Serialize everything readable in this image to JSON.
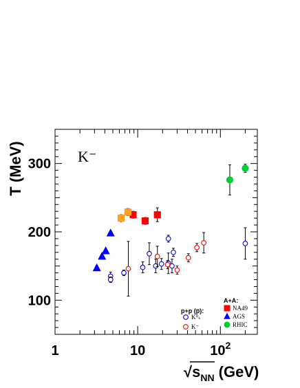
{
  "chart_data": {
    "type": "scatter",
    "title": "",
    "annotation": "K⁻",
    "xlabel": "√s_NN (GeV)",
    "ylabel": "T (MeV)",
    "xscale": "log",
    "xlim": [
      1,
      280
    ],
    "ylim": [
      50,
      350
    ],
    "xticks": [
      {
        "value": 1,
        "label": "1"
      },
      {
        "value": 10,
        "label": "10"
      },
      {
        "value": 100,
        "label": "10",
        "sup": "2"
      }
    ],
    "yticks": [
      {
        "value": 100,
        "label": "100"
      },
      {
        "value": 200,
        "label": "200"
      },
      {
        "value": 300,
        "label": "300"
      }
    ],
    "legend": {
      "placement": "bottom-right",
      "groups": [
        {
          "title": "p+p (p̅):",
          "entries": [
            {
              "label": "K⁰ₛ",
              "series": "pp_K0s"
            },
            {
              "label": "K⁻",
              "series": "pp_Kminus"
            }
          ]
        },
        {
          "title": "A+A:",
          "entries": [
            {
              "label": "NA49",
              "series": "na49"
            },
            {
              "label": "AGS",
              "series": "ags"
            },
            {
              "label": "RHIC",
              "series": "rhic"
            }
          ]
        }
      ]
    },
    "series": [
      {
        "id": "ags",
        "name": "AGS",
        "marker": "triangle",
        "color": "#0000ff",
        "filled": true,
        "points": [
          {
            "x": 3.2,
            "y": 147,
            "err": 3
          },
          {
            "x": 3.7,
            "y": 164,
            "err": 3
          },
          {
            "x": 4.1,
            "y": 172,
            "err": 3
          },
          {
            "x": 4.7,
            "y": 198,
            "err": 2
          }
        ]
      },
      {
        "id": "na49",
        "name": "NA49",
        "marker": "square",
        "color": "#ff0000",
        "filled": true,
        "points": [
          {
            "x": 8.8,
            "y": 225,
            "err": 5
          },
          {
            "x": 12.3,
            "y": 216,
            "err": 5
          },
          {
            "x": 17.3,
            "y": 225,
            "err": 10
          }
        ]
      },
      {
        "id": "na49_low",
        "name": "",
        "marker": "square",
        "color": "#ffa020",
        "filled": true,
        "points": [
          {
            "x": 6.3,
            "y": 220,
            "err": 5
          },
          {
            "x": 7.6,
            "y": 229,
            "err": 5
          }
        ]
      },
      {
        "id": "rhic",
        "name": "RHIC",
        "marker": "circle",
        "color": "#00cc33",
        "filled": true,
        "points": [
          {
            "x": 130,
            "y": 276,
            "err": 22
          },
          {
            "x": 200,
            "y": 293,
            "err": 6
          }
        ]
      },
      {
        "id": "pp_K0s",
        "name": "K⁰ₛ",
        "marker": "circle",
        "color": "#0000ff",
        "filled": false,
        "points": [
          {
            "x": 4.7,
            "y": 135,
            "err": 6
          },
          {
            "x": 4.7,
            "y": 130,
            "err": 4
          },
          {
            "x": 6.8,
            "y": 140,
            "err": 4
          },
          {
            "x": 11.5,
            "y": 148,
            "err": 8
          },
          {
            "x": 13.8,
            "y": 168,
            "err": 16
          },
          {
            "x": 16.5,
            "y": 150,
            "err": 10
          },
          {
            "x": 19.4,
            "y": 153,
            "err": 8
          },
          {
            "x": 23.5,
            "y": 190,
            "err": 5
          },
          {
            "x": 23.5,
            "y": 154,
            "err": 15
          },
          {
            "x": 26.0,
            "y": 150,
            "err": 10
          },
          {
            "x": 27.0,
            "y": 170,
            "err": 6
          },
          {
            "x": 200,
            "y": 183,
            "err": 23
          }
        ]
      },
      {
        "id": "pp_Kminus",
        "name": "K⁻",
        "marker": "circle",
        "color": "#ff0000",
        "filled": false,
        "points": [
          {
            "x": 7.7,
            "y": 146,
            "err": 40
          },
          {
            "x": 17.3,
            "y": 164,
            "err": 15
          },
          {
            "x": 23.0,
            "y": 152,
            "err": 6
          },
          {
            "x": 30.0,
            "y": 144,
            "err": 6
          },
          {
            "x": 41.0,
            "y": 162,
            "err": 6
          },
          {
            "x": 52.0,
            "y": 177,
            "err": 6
          },
          {
            "x": 63.0,
            "y": 184,
            "err": 15
          }
        ]
      }
    ]
  }
}
